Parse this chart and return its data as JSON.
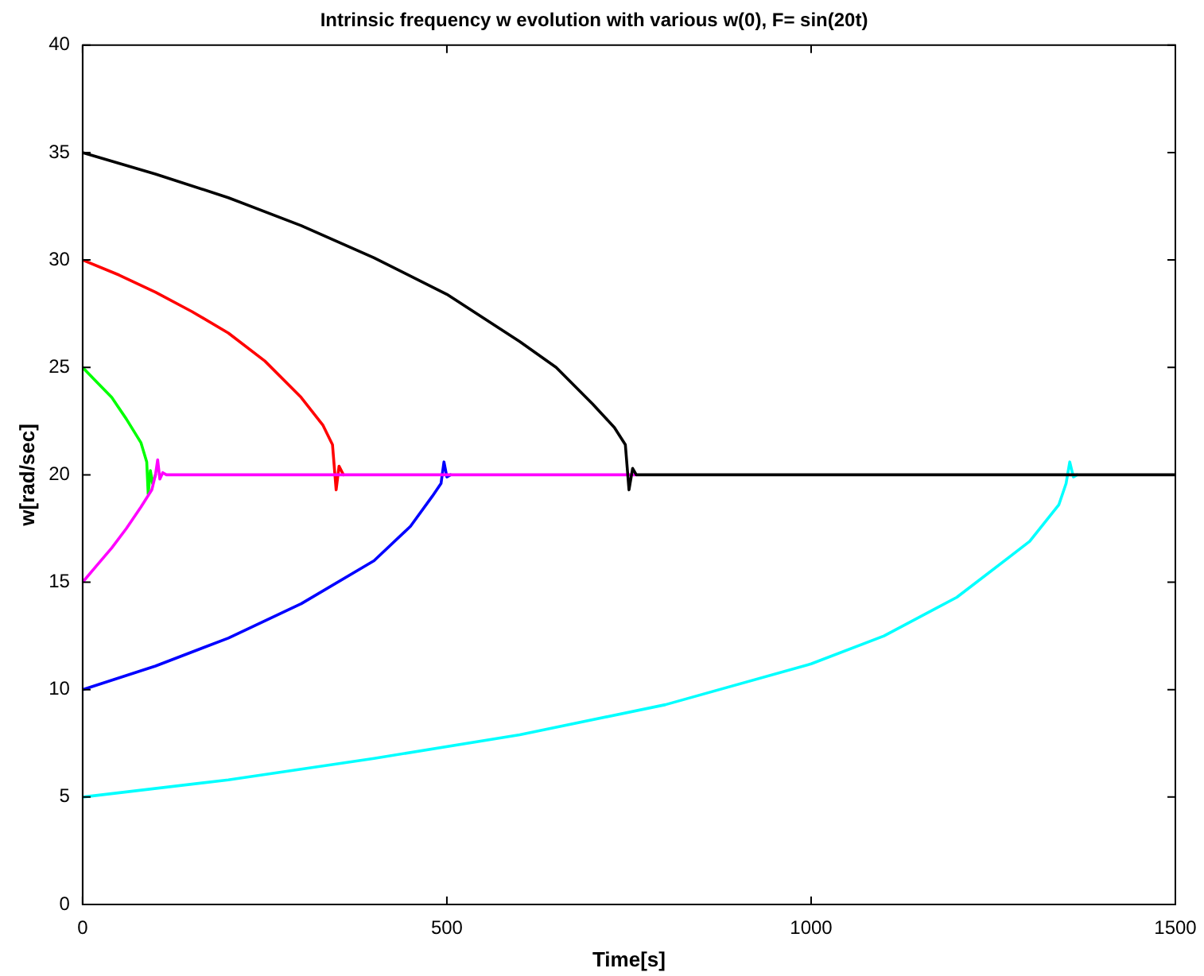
{
  "chart_data": {
    "type": "line",
    "title": "Intrinsic frequency w evolution with various w(0), F= sin(20t)",
    "xlabel": "Time[s]",
    "ylabel": "w[rad/sec]",
    "xlim": [
      0,
      1500
    ],
    "xticks": [
      0,
      500,
      1000,
      1500
    ],
    "ylim": [
      0,
      40
    ],
    "yticks": [
      0,
      5,
      10,
      15,
      20,
      25,
      30,
      35,
      40
    ],
    "grid": false,
    "legend": false,
    "marker": "none",
    "line_style": "solid",
    "series": [
      {
        "color": "#00ffff",
        "x": [
          0,
          200,
          400,
          600,
          800,
          1000,
          1100,
          1200,
          1300,
          1340,
          1350,
          1355,
          1360,
          1365
        ],
        "values": [
          5,
          5.8,
          6.8,
          7.9,
          9.3,
          11.2,
          12.5,
          14.3,
          16.9,
          18.6,
          19.6,
          20.6,
          19.9,
          20
        ]
      },
      {
        "color": "#0000ff",
        "x": [
          0,
          100,
          200,
          300,
          400,
          450,
          480,
          492,
          496,
          500,
          505
        ],
        "values": [
          10,
          11.1,
          12.4,
          14,
          16,
          17.6,
          19,
          19.6,
          20.6,
          19.9,
          20
        ]
      },
      {
        "color": "#00ff00",
        "x": [
          0,
          20,
          40,
          60,
          80,
          88,
          90,
          93,
          96,
          100
        ],
        "values": [
          25,
          24.3,
          23.6,
          22.6,
          21.5,
          20.6,
          19.1,
          20.2,
          19.6,
          20
        ]
      },
      {
        "color": "#ff0000",
        "x": [
          0,
          50,
          100,
          150,
          200,
          250,
          300,
          330,
          343,
          348,
          352,
          358
        ],
        "values": [
          30,
          29.3,
          28.5,
          27.6,
          26.6,
          25.3,
          23.6,
          22.3,
          21.4,
          19.3,
          20.4,
          20
        ]
      },
      {
        "color": "#ff00ff",
        "x": [
          0,
          20,
          40,
          60,
          80,
          95,
          100,
          103,
          106,
          110,
          115,
          760
        ],
        "values": [
          15,
          15.8,
          16.6,
          17.5,
          18.5,
          19.3,
          20,
          20.7,
          19.8,
          20.1,
          20,
          20
        ]
      },
      {
        "color": "#000000",
        "x": [
          0,
          100,
          200,
          300,
          400,
          500,
          600,
          650,
          700,
          730,
          745,
          750,
          755,
          760,
          1500
        ],
        "values": [
          35,
          34,
          32.9,
          31.6,
          30.1,
          28.4,
          26.2,
          25,
          23.3,
          22.2,
          21.4,
          19.3,
          20.3,
          20,
          20
        ]
      }
    ]
  }
}
